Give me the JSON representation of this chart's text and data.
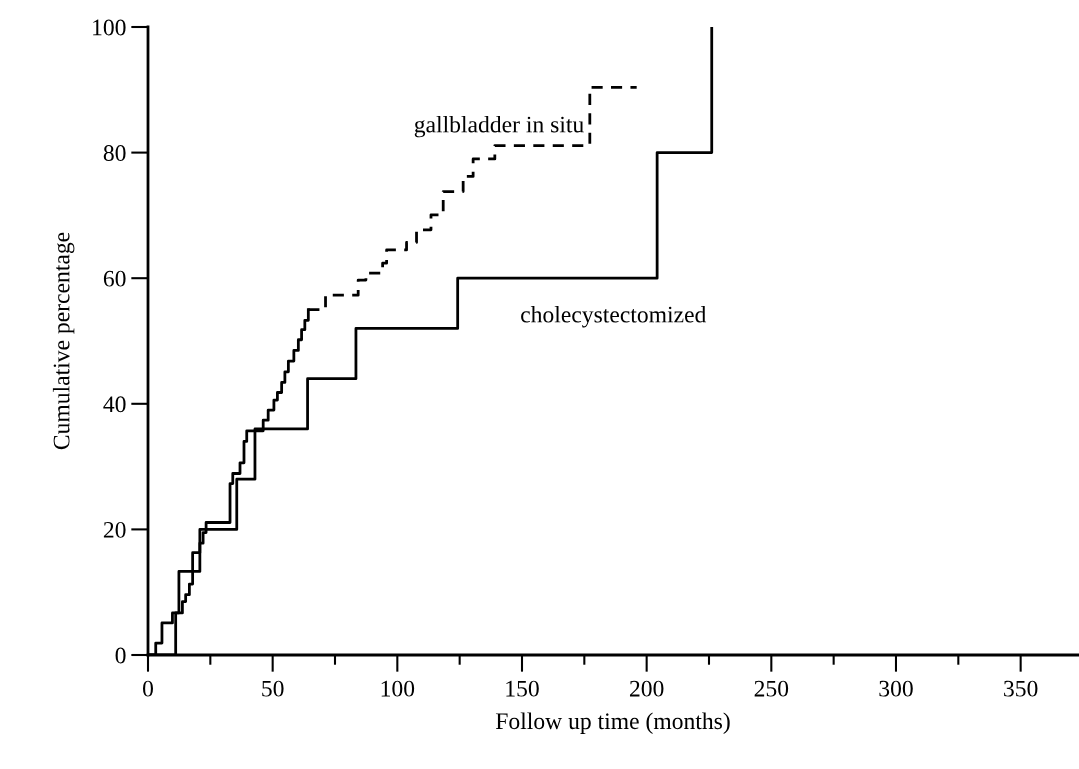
{
  "chart_data": {
    "type": "step",
    "xlabel": "Follow up time (months)",
    "ylabel": "Cumulative percentage",
    "xlim": [
      0,
      373
    ],
    "ylim": [
      0,
      100
    ],
    "xticks": [
      0,
      {
        "value": 25,
        "label": null
      },
      50,
      {
        "value": 75,
        "label": null
      },
      100,
      {
        "value": 125,
        "label": null
      },
      150,
      {
        "value": 175,
        "label": null
      },
      200,
      {
        "value": 225,
        "label": null
      },
      250,
      {
        "value": 275,
        "label": null
      },
      300,
      {
        "value": 325,
        "label": null
      },
      350
    ],
    "yticks": [
      0,
      20,
      40,
      60,
      80,
      100
    ],
    "grid": false,
    "legend": false,
    "series": [
      {
        "color": "#000000",
        "line_style": "solid",
        "x": [
          0,
          3.1,
          5.6,
          9.8,
          13.8,
          15.1,
          16.6,
          17.9,
          20.8,
          22.1,
          23.3,
          32.9,
          34.0,
          36.9,
          38.5,
          39.6,
          46.2,
          48.2,
          50.5,
          51.9,
          53.6,
          54.9,
          56.3,
          58.5,
          60.3,
          61.6,
          62.9,
          64.3
        ],
        "values": [
          0,
          1.9,
          5.1,
          6.7,
          8.5,
          9.6,
          11.3,
          16.3,
          17.8,
          19.5,
          21.1,
          27.3,
          28.9,
          30.6,
          34.0,
          35.7,
          37.4,
          39.0,
          40.6,
          41.8,
          43.4,
          45.1,
          46.8,
          48.5,
          50.2,
          51.8,
          53.3,
          55.0
        ]
      },
      {
        "name": "gallbladder in situ",
        "color": "#000000",
        "line_style": "dashed",
        "x": [
          64.3,
          71.2,
          84.3,
          87.4,
          94.1,
          95.7,
          103.7,
          107.7,
          113.5,
          118.4,
          126.4,
          130.4,
          139.1,
          177.2,
          196
        ],
        "values": [
          55.0,
          57.3,
          59.7,
          60.8,
          62.4,
          64.5,
          65.7,
          67.7,
          70.1,
          73.8,
          76.2,
          79.0,
          81.1,
          90.4,
          90.4
        ]
      },
      {
        "name": "cholecystectomized",
        "color": "#000000",
        "line_style": "solid",
        "x": [
          0,
          11.1,
          12.4,
          20.8,
          35.6,
          42.9,
          64.0,
          83.4,
          124.2,
          204.2,
          226.1
        ],
        "values": [
          0,
          6.7,
          13.3,
          20,
          28,
          36,
          44,
          52,
          60,
          80,
          100
        ]
      }
    ]
  }
}
